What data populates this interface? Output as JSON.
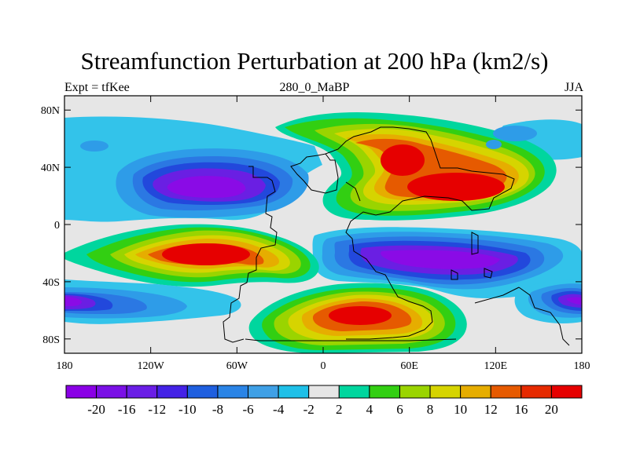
{
  "title": "Streamfunction Perturbation at 200 hPa (km2/s)",
  "subtitle_left": "Expt = tfKee",
  "subtitle_center": "280_0_MaBP",
  "subtitle_right": "JJA",
  "lat_ticks": [
    {
      "label": "80N",
      "lat": 80
    },
    {
      "label": "40N",
      "lat": 40
    },
    {
      "label": "0",
      "lat": 0
    },
    {
      "label": "40S",
      "lat": -40
    },
    {
      "label": "80S",
      "lat": -80
    }
  ],
  "lon_ticks": [
    {
      "label": "180",
      "lon": -180
    },
    {
      "label": "120W",
      "lon": -120
    },
    {
      "label": "60W",
      "lon": -60
    },
    {
      "label": "0",
      "lon": 0
    },
    {
      "label": "60E",
      "lon": 60
    },
    {
      "label": "120E",
      "lon": 120
    },
    {
      "label": "180",
      "lon": 180
    }
  ],
  "colorbar": {
    "labels": [
      "-20",
      "-16",
      "-12",
      "-10",
      "-8",
      "-6",
      "-4",
      "-2",
      "2",
      "4",
      "6",
      "8",
      "10",
      "12",
      "16",
      "20"
    ],
    "colors": [
      "#8a00e6",
      "#7a10e6",
      "#6a1ee6",
      "#4422e6",
      "#1f5fdf",
      "#2a84e6",
      "#3fa0e6",
      "#1fc0e8",
      "#e6e6e6",
      "#00d69e",
      "#32cf12",
      "#9ad400",
      "#d6d400",
      "#e6ad00",
      "#e65a00",
      "#e62a00",
      "#e60000"
    ]
  },
  "field_colors": {
    "gray": "#e6e6e6",
    "lightblue": "#33c3ea",
    "blue2": "#2e9ce8",
    "blue3": "#2b78e3",
    "blue4": "#2248dc",
    "purple": "#6a1fe3",
    "violet": "#8a0be6",
    "teal": "#00d69e",
    "green": "#32cf12",
    "ygreen": "#9ad400",
    "yellow": "#d6d400",
    "orange": "#e6ad00",
    "dorange": "#e65a00",
    "red": "#e60000"
  },
  "chart_data": {
    "type": "heatmap",
    "title": "Streamfunction Perturbation at 200 hPa (km2/s)",
    "variable": "streamfunction perturbation",
    "units": "km2/s",
    "level": "200 hPa",
    "season": "JJA",
    "lon_range": [
      -180,
      180
    ],
    "lat_range": [
      -90,
      90
    ],
    "contour_levels": [
      -20,
      -16,
      -12,
      -10,
      -8,
      -6,
      -4,
      -2,
      2,
      4,
      6,
      8,
      10,
      12,
      16,
      20
    ],
    "features": [
      {
        "sign": "negative",
        "center_lon": -105,
        "center_lat": 25,
        "peak": -20
      },
      {
        "sign": "negative",
        "center_lon": 60,
        "center_lat": -25,
        "peak": -20
      },
      {
        "sign": "negative",
        "center_lon": 180,
        "center_lat": -55,
        "peak": -20
      },
      {
        "sign": "positive",
        "center_lon": -80,
        "center_lat": -20,
        "peak": 20
      },
      {
        "sign": "positive",
        "center_lon": 45,
        "center_lat": 50,
        "peak": 16
      },
      {
        "sign": "positive",
        "center_lon": 90,
        "center_lat": 25,
        "peak": 20
      },
      {
        "sign": "positive",
        "center_lon": 25,
        "center_lat": -62,
        "peak": 16
      }
    ]
  }
}
